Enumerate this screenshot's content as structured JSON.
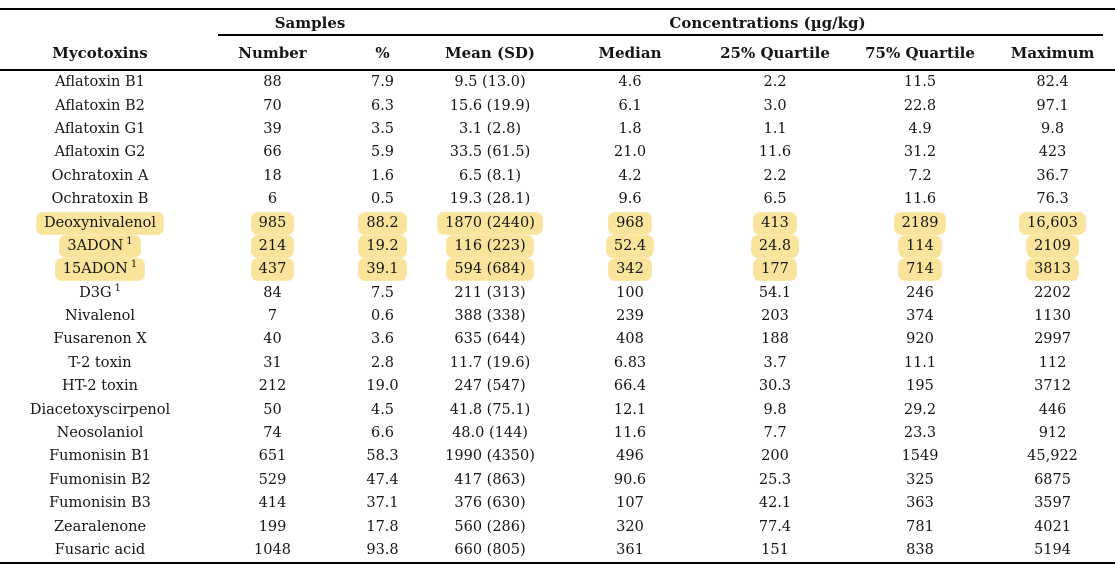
{
  "table": {
    "group_headers": {
      "samples": "Samples",
      "concentrations": "Concentrations (µg/kg)"
    },
    "columns": [
      "Mycotoxins",
      "Number",
      "%",
      "Mean (SD)",
      "Median",
      "25% Quartile",
      "75% Quartile",
      "Maximum"
    ],
    "highlight_color": "#fae39a",
    "rows": [
      {
        "mycotoxin": "Aflatoxin B1",
        "sup": "",
        "highlighted": false,
        "values": [
          "88",
          "7.9",
          "9.5 (13.0)",
          "4.6",
          "2.2",
          "11.5",
          "82.4"
        ]
      },
      {
        "mycotoxin": "Aflatoxin B2",
        "sup": "",
        "highlighted": false,
        "values": [
          "70",
          "6.3",
          "15.6 (19.9)",
          "6.1",
          "3.0",
          "22.8",
          "97.1"
        ]
      },
      {
        "mycotoxin": "Aflatoxin G1",
        "sup": "",
        "highlighted": false,
        "values": [
          "39",
          "3.5",
          "3.1 (2.8)",
          "1.8",
          "1.1",
          "4.9",
          "9.8"
        ]
      },
      {
        "mycotoxin": "Aflatoxin G2",
        "sup": "",
        "highlighted": false,
        "values": [
          "66",
          "5.9",
          "33.5 (61.5)",
          "21.0",
          "11.6",
          "31.2",
          "423"
        ]
      },
      {
        "mycotoxin": "Ochratoxin A",
        "sup": "",
        "highlighted": false,
        "values": [
          "18",
          "1.6",
          "6.5 (8.1)",
          "4.2",
          "2.2",
          "7.2",
          "36.7"
        ]
      },
      {
        "mycotoxin": "Ochratoxin B",
        "sup": "",
        "highlighted": false,
        "values": [
          "6",
          "0.5",
          "19.3 (28.1)",
          "9.6",
          "6.5",
          "11.6",
          "76.3"
        ]
      },
      {
        "mycotoxin": "Deoxynivalenol",
        "sup": "",
        "highlighted": true,
        "values": [
          "985",
          "88.2",
          "1870 (2440)",
          "968",
          "413",
          "2189",
          "16,603"
        ]
      },
      {
        "mycotoxin": "3ADON",
        "sup": "1",
        "highlighted": true,
        "values": [
          "214",
          "19.2",
          "116 (223)",
          "52.4",
          "24.8",
          "114",
          "2109"
        ]
      },
      {
        "mycotoxin": "15ADON",
        "sup": "1",
        "highlighted": true,
        "values": [
          "437",
          "39.1",
          "594 (684)",
          "342",
          "177",
          "714",
          "3813"
        ]
      },
      {
        "mycotoxin": "D3G",
        "sup": "1",
        "highlighted": false,
        "values": [
          "84",
          "7.5",
          "211 (313)",
          "100",
          "54.1",
          "246",
          "2202"
        ]
      },
      {
        "mycotoxin": "Nivalenol",
        "sup": "",
        "highlighted": false,
        "values": [
          "7",
          "0.6",
          "388 (338)",
          "239",
          "203",
          "374",
          "1130"
        ]
      },
      {
        "mycotoxin": "Fusarenon X",
        "sup": "",
        "highlighted": false,
        "values": [
          "40",
          "3.6",
          "635 (644)",
          "408",
          "188",
          "920",
          "2997"
        ]
      },
      {
        "mycotoxin": "T-2 toxin",
        "sup": "",
        "highlighted": false,
        "values": [
          "31",
          "2.8",
          "11.7 (19.6)",
          "6.83",
          "3.7",
          "11.1",
          "112"
        ]
      },
      {
        "mycotoxin": "HT-2 toxin",
        "sup": "",
        "highlighted": false,
        "values": [
          "212",
          "19.0",
          "247 (547)",
          "66.4",
          "30.3",
          "195",
          "3712"
        ]
      },
      {
        "mycotoxin": "Diacetoxyscirpenol",
        "sup": "",
        "highlighted": false,
        "values": [
          "50",
          "4.5",
          "41.8 (75.1)",
          "12.1",
          "9.8",
          "29.2",
          "446"
        ]
      },
      {
        "mycotoxin": "Neosolaniol",
        "sup": "",
        "highlighted": false,
        "values": [
          "74",
          "6.6",
          "48.0 (144)",
          "11.6",
          "7.7",
          "23.3",
          "912"
        ]
      },
      {
        "mycotoxin": "Fumonisin B1",
        "sup": "",
        "highlighted": false,
        "values": [
          "651",
          "58.3",
          "1990 (4350)",
          "496",
          "200",
          "1549",
          "45,922"
        ]
      },
      {
        "mycotoxin": "Fumonisin B2",
        "sup": "",
        "highlighted": false,
        "values": [
          "529",
          "47.4",
          "417 (863)",
          "90.6",
          "25.3",
          "325",
          "6875"
        ]
      },
      {
        "mycotoxin": "Fumonisin B3",
        "sup": "",
        "highlighted": false,
        "values": [
          "414",
          "37.1",
          "376 (630)",
          "107",
          "42.1",
          "363",
          "3597"
        ]
      },
      {
        "mycotoxin": "Zearalenone",
        "sup": "",
        "highlighted": false,
        "values": [
          "199",
          "17.8",
          "560 (286)",
          "320",
          "77.4",
          "781",
          "4021"
        ]
      },
      {
        "mycotoxin": "Fusaric acid",
        "sup": "",
        "highlighted": false,
        "values": [
          "1048",
          "93.8",
          "660 (805)",
          "361",
          "151",
          "838",
          "5194"
        ]
      }
    ]
  }
}
